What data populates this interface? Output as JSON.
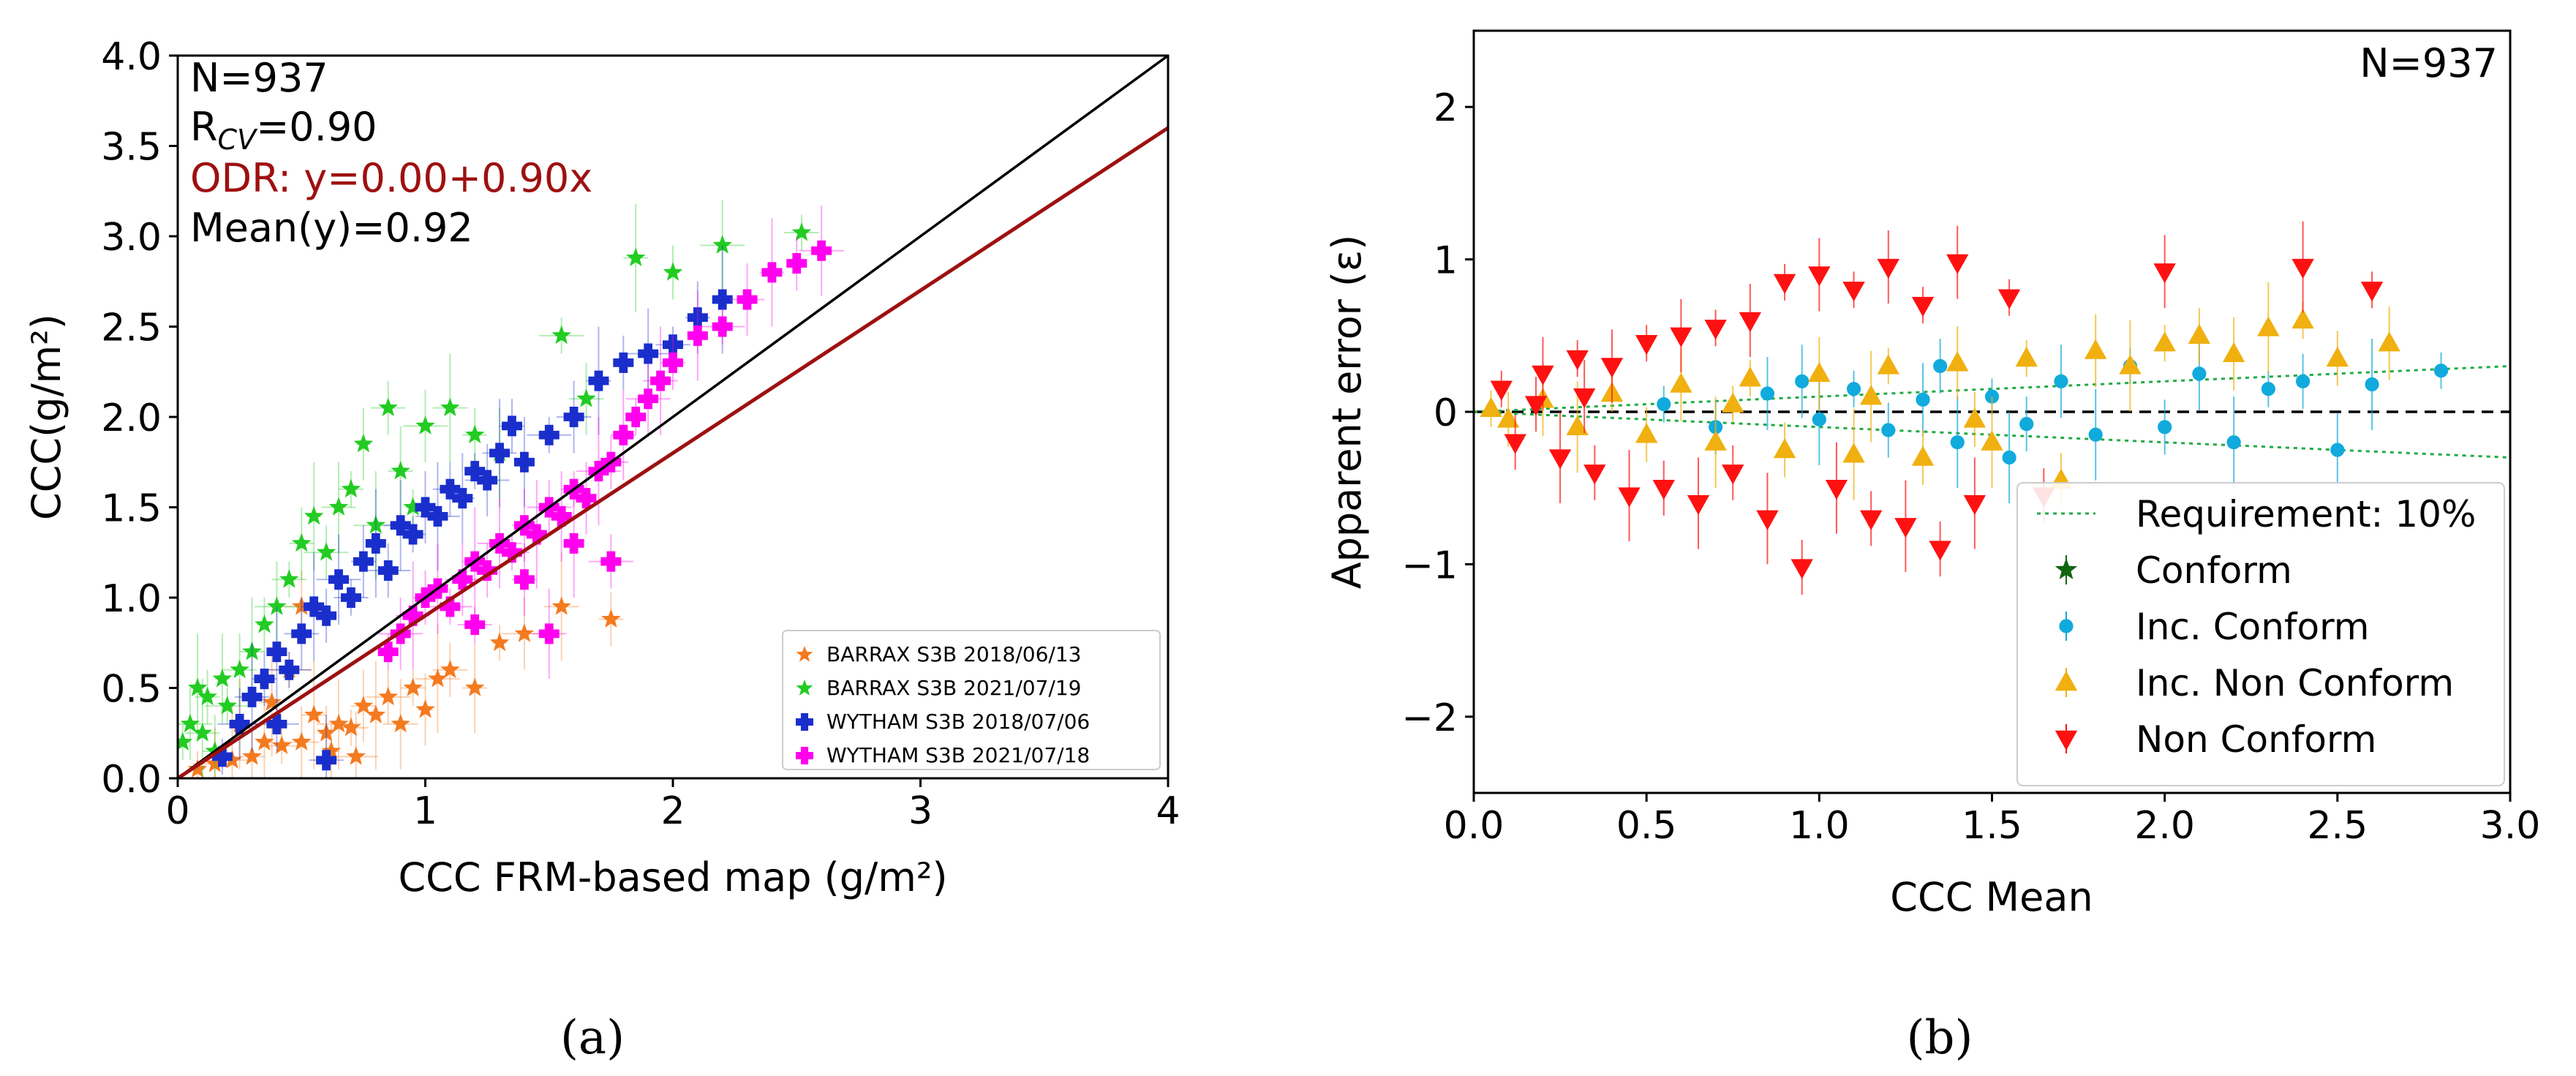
{
  "chart_data": [
    {
      "type": "scatter",
      "panel_label": "(a)",
      "xlabel": "CCC FRM-based map (g/m²)",
      "ylabel": "CCC(g/m²)",
      "xlim": [
        0,
        4
      ],
      "ylim": [
        0,
        4
      ],
      "x_ticks": [
        0,
        1,
        2,
        3,
        4
      ],
      "y_ticks": [
        0.0,
        0.5,
        1.0,
        1.5,
        2.0,
        2.5,
        3.0,
        3.5,
        4.0
      ],
      "x_tick_labels": [
        "0",
        "1",
        "2",
        "3",
        "4"
      ],
      "y_tick_labels": [
        "0.0",
        "0.5",
        "1.0",
        "1.5",
        "2.0",
        "2.5",
        "3.0",
        "3.5",
        "4.0"
      ],
      "grid": false,
      "legend_position": "bottom-right",
      "annotations": [
        {
          "text": "N=937",
          "color": "#000000"
        },
        {
          "text": "R_CV=0.90",
          "main": "R",
          "sub": "CV",
          "rest": "=0.90",
          "color": "#000000"
        },
        {
          "text": "ODR: y=0.00+0.90x",
          "color": "#9e1010"
        },
        {
          "text": "Mean(y)=0.92",
          "color": "#000000"
        }
      ],
      "lines": [
        {
          "kind": "1:1",
          "intercept": 0.0,
          "slope": 1.0,
          "color": "#000000"
        },
        {
          "kind": "ODR fit",
          "intercept": 0.0,
          "slope": 0.9,
          "color": "#9e1010"
        }
      ],
      "series": [
        {
          "name": "BARRAX S3B 2018/06/13",
          "marker": "star",
          "color": "#f47a20",
          "x_range": [
            0.05,
            1.85
          ],
          "relation": "y ≈ 0.35x, spread 0.15",
          "points": [
            [
              0.08,
              0.05
            ],
            [
              0.15,
              0.08
            ],
            [
              0.22,
              0.1
            ],
            [
              0.3,
              0.12
            ],
            [
              0.35,
              0.2
            ],
            [
              0.42,
              0.18
            ],
            [
              0.5,
              0.2
            ],
            [
              0.55,
              0.35
            ],
            [
              0.6,
              0.25
            ],
            [
              0.65,
              0.3
            ],
            [
              0.7,
              0.28
            ],
            [
              0.75,
              0.4
            ],
            [
              0.8,
              0.35
            ],
            [
              0.85,
              0.45
            ],
            [
              0.9,
              0.3
            ],
            [
              0.95,
              0.5
            ],
            [
              1.0,
              0.38
            ],
            [
              1.05,
              0.55
            ],
            [
              1.1,
              0.6
            ],
            [
              1.2,
              0.5
            ],
            [
              1.3,
              0.75
            ],
            [
              1.4,
              0.8
            ],
            [
              1.55,
              0.95
            ],
            [
              1.75,
              0.88
            ],
            [
              0.25,
              0.3
            ],
            [
              0.45,
              0.6
            ],
            [
              0.5,
              0.95
            ],
            [
              0.38,
              0.42
            ],
            [
              0.62,
              0.15
            ],
            [
              0.72,
              0.12
            ]
          ]
        },
        {
          "name": "BARRAX S3B 2021/07/19",
          "marker": "star",
          "color": "#22cc22",
          "x_range": [
            0.0,
            2.5
          ],
          "relation": "y ≈ 0.2 + 1.2x, spread 0.3",
          "points": [
            [
              0.02,
              0.2
            ],
            [
              0.05,
              0.3
            ],
            [
              0.1,
              0.25
            ],
            [
              0.12,
              0.45
            ],
            [
              0.18,
              0.55
            ],
            [
              0.2,
              0.4
            ],
            [
              0.25,
              0.6
            ],
            [
              0.3,
              0.7
            ],
            [
              0.35,
              0.85
            ],
            [
              0.4,
              0.95
            ],
            [
              0.45,
              1.1
            ],
            [
              0.5,
              1.3
            ],
            [
              0.55,
              1.45
            ],
            [
              0.6,
              1.25
            ],
            [
              0.65,
              1.5
            ],
            [
              0.7,
              1.6
            ],
            [
              0.75,
              1.85
            ],
            [
              0.8,
              1.4
            ],
            [
              0.85,
              2.05
            ],
            [
              0.9,
              1.7
            ],
            [
              0.95,
              1.5
            ],
            [
              1.0,
              1.95
            ],
            [
              1.1,
              2.05
            ],
            [
              1.2,
              1.9
            ],
            [
              1.3,
              1.8
            ],
            [
              1.55,
              2.45
            ],
            [
              1.65,
              2.1
            ],
            [
              1.85,
              2.88
            ],
            [
              2.0,
              2.8
            ],
            [
              2.2,
              2.95
            ],
            [
              2.52,
              3.02
            ],
            [
              0.15,
              0.15
            ],
            [
              0.08,
              0.5
            ]
          ]
        },
        {
          "name": "WYTHAM S3B 2018/07/06",
          "marker": "plus",
          "color": "#1a2ecc",
          "x_range": [
            0.15,
            2.2
          ],
          "relation": "y ≈ 0.15 + 1.1x, spread 0.25",
          "points": [
            [
              0.18,
              0.12
            ],
            [
              0.25,
              0.3
            ],
            [
              0.3,
              0.45
            ],
            [
              0.35,
              0.55
            ],
            [
              0.4,
              0.7
            ],
            [
              0.45,
              0.6
            ],
            [
              0.5,
              0.8
            ],
            [
              0.55,
              0.95
            ],
            [
              0.6,
              0.9
            ],
            [
              0.65,
              1.1
            ],
            [
              0.7,
              1.0
            ],
            [
              0.75,
              1.2
            ],
            [
              0.8,
              1.3
            ],
            [
              0.85,
              1.15
            ],
            [
              0.9,
              1.4
            ],
            [
              0.95,
              1.35
            ],
            [
              1.0,
              1.5
            ],
            [
              1.05,
              1.45
            ],
            [
              1.1,
              1.6
            ],
            [
              1.15,
              1.55
            ],
            [
              1.2,
              1.7
            ],
            [
              1.25,
              1.65
            ],
            [
              1.3,
              1.8
            ],
            [
              1.35,
              1.95
            ],
            [
              1.4,
              1.75
            ],
            [
              1.5,
              1.9
            ],
            [
              1.6,
              2.0
            ],
            [
              1.7,
              2.2
            ],
            [
              1.8,
              2.3
            ],
            [
              1.9,
              2.35
            ],
            [
              2.0,
              2.4
            ],
            [
              2.1,
              2.55
            ],
            [
              2.2,
              2.65
            ],
            [
              0.4,
              0.3
            ],
            [
              0.6,
              0.1
            ]
          ]
        },
        {
          "name": "WYTHAM S3B 2021/07/18",
          "marker": "plus",
          "color": "#ff00ee",
          "x_range": [
            0.8,
            2.65
          ],
          "relation": "y ≈ 0.1 + 0.95x, spread 0.3",
          "points": [
            [
              0.85,
              0.7
            ],
            [
              0.9,
              0.8
            ],
            [
              0.95,
              0.9
            ],
            [
              1.0,
              1.0
            ],
            [
              1.05,
              1.05
            ],
            [
              1.1,
              0.95
            ],
            [
              1.15,
              1.1
            ],
            [
              1.2,
              1.2
            ],
            [
              1.25,
              1.15
            ],
            [
              1.3,
              1.3
            ],
            [
              1.35,
              1.25
            ],
            [
              1.4,
              1.4
            ],
            [
              1.45,
              1.35
            ],
            [
              1.5,
              1.5
            ],
            [
              1.55,
              1.45
            ],
            [
              1.6,
              1.6
            ],
            [
              1.65,
              1.55
            ],
            [
              1.7,
              1.7
            ],
            [
              1.75,
              1.75
            ],
            [
              1.8,
              1.9
            ],
            [
              1.85,
              2.0
            ],
            [
              1.9,
              2.1
            ],
            [
              1.95,
              2.2
            ],
            [
              2.0,
              2.3
            ],
            [
              2.1,
              2.45
            ],
            [
              2.2,
              2.5
            ],
            [
              2.3,
              2.65
            ],
            [
              2.4,
              2.8
            ],
            [
              2.5,
              2.85
            ],
            [
              2.6,
              2.92
            ],
            [
              1.2,
              0.85
            ],
            [
              1.4,
              1.1
            ],
            [
              1.6,
              1.3
            ],
            [
              1.75,
              1.2
            ],
            [
              1.5,
              0.8
            ]
          ]
        }
      ]
    },
    {
      "type": "scatter",
      "panel_label": "(b)",
      "xlabel": "CCC Mean",
      "ylabel": "Apparent error (ε)",
      "xlim": [
        0,
        3
      ],
      "ylim": [
        -2.5,
        2.5
      ],
      "x_ticks": [
        0.0,
        0.5,
        1.0,
        1.5,
        2.0,
        2.5,
        3.0
      ],
      "y_ticks": [
        -2,
        -1,
        0,
        1,
        2
      ],
      "x_tick_labels": [
        "0.0",
        "0.5",
        "1.0",
        "1.5",
        "2.0",
        "2.5",
        "3.0"
      ],
      "y_tick_labels": [
        "−2",
        "−1",
        "0",
        "1",
        "2"
      ],
      "grid": false,
      "legend_position": "bottom-right",
      "annotations": [
        {
          "text": "N=937",
          "color": "#000000"
        }
      ],
      "lines": [
        {
          "kind": "zero",
          "y": 0,
          "style": "dashed",
          "color": "#000000"
        },
        {
          "kind": "requirement",
          "name": "Requirement: 10%",
          "relation": "±0.1·x",
          "style": "dotted",
          "color": "#22aa44"
        }
      ],
      "series": [
        {
          "name": "Conform",
          "marker": "star",
          "color": "#116611",
          "points": []
        },
        {
          "name": "Inc. Conform",
          "marker": "circle",
          "color": "#11aadd",
          "x_range": [
            0.5,
            2.8
          ],
          "relation": "|ε| < 0.35",
          "points": [
            [
              0.55,
              0.05
            ],
            [
              0.7,
              -0.1
            ],
            [
              0.85,
              0.12
            ],
            [
              1.0,
              -0.05
            ],
            [
              1.1,
              0.15
            ],
            [
              1.2,
              -0.12
            ],
            [
              1.3,
              0.08
            ],
            [
              1.4,
              -0.2
            ],
            [
              1.5,
              0.1
            ],
            [
              1.6,
              -0.08
            ],
            [
              1.7,
              0.2
            ],
            [
              1.8,
              -0.15
            ],
            [
              1.9,
              0.3
            ],
            [
              2.0,
              -0.1
            ],
            [
              2.1,
              0.25
            ],
            [
              2.2,
              -0.2
            ],
            [
              2.3,
              0.15
            ],
            [
              2.4,
              0.2
            ],
            [
              2.5,
              -0.25
            ],
            [
              2.6,
              0.18
            ],
            [
              2.8,
              0.27
            ],
            [
              1.35,
              0.3
            ],
            [
              0.95,
              0.2
            ],
            [
              1.55,
              -0.3
            ]
          ]
        },
        {
          "name": "Inc. Non Conform",
          "marker": "triangle-up",
          "color": "#f0b010",
          "x_range": [
            0.0,
            2.7
          ],
          "relation": "ε ≈ ±(0.05 + 0.15x)",
          "points": [
            [
              0.05,
              0.02
            ],
            [
              0.1,
              -0.05
            ],
            [
              0.2,
              0.08
            ],
            [
              0.3,
              -0.1
            ],
            [
              0.4,
              0.12
            ],
            [
              0.5,
              -0.15
            ],
            [
              0.6,
              0.18
            ],
            [
              0.7,
              -0.2
            ],
            [
              0.8,
              0.22
            ],
            [
              0.9,
              -0.25
            ],
            [
              1.0,
              0.25
            ],
            [
              1.1,
              -0.28
            ],
            [
              1.2,
              0.3
            ],
            [
              1.3,
              -0.3
            ],
            [
              1.4,
              0.32
            ],
            [
              1.5,
              -0.2
            ],
            [
              1.6,
              0.35
            ],
            [
              1.7,
              -0.45
            ],
            [
              1.8,
              0.4
            ],
            [
              1.9,
              0.3
            ],
            [
              2.0,
              0.45
            ],
            [
              2.1,
              0.5
            ],
            [
              2.2,
              0.38
            ],
            [
              2.3,
              0.55
            ],
            [
              2.4,
              0.6
            ],
            [
              2.5,
              0.35
            ],
            [
              2.65,
              0.45
            ],
            [
              1.15,
              0.1
            ],
            [
              0.75,
              0.05
            ],
            [
              1.45,
              -0.05
            ]
          ]
        },
        {
          "name": "Non Conform",
          "marker": "triangle-down",
          "color": "#ff1111",
          "x_range": [
            0.05,
            2.6
          ],
          "relation": "|ε| ≈ 0.2 – 1.05",
          "points": [
            [
              0.08,
              0.15
            ],
            [
              0.12,
              -0.2
            ],
            [
              0.2,
              0.25
            ],
            [
              0.25,
              -0.3
            ],
            [
              0.3,
              0.35
            ],
            [
              0.35,
              -0.4
            ],
            [
              0.4,
              0.3
            ],
            [
              0.45,
              -0.55
            ],
            [
              0.5,
              0.45
            ],
            [
              0.55,
              -0.5
            ],
            [
              0.6,
              0.5
            ],
            [
              0.65,
              -0.6
            ],
            [
              0.7,
              0.55
            ],
            [
              0.75,
              -0.4
            ],
            [
              0.8,
              0.6
            ],
            [
              0.85,
              -0.7
            ],
            [
              0.9,
              0.85
            ],
            [
              0.95,
              -1.02
            ],
            [
              1.0,
              0.9
            ],
            [
              1.05,
              -0.5
            ],
            [
              1.1,
              0.8
            ],
            [
              1.15,
              -0.7
            ],
            [
              1.2,
              0.95
            ],
            [
              1.25,
              -0.75
            ],
            [
              1.3,
              0.7
            ],
            [
              1.35,
              -0.9
            ],
            [
              1.4,
              0.98
            ],
            [
              1.45,
              -0.6
            ],
            [
              1.55,
              0.75
            ],
            [
              1.65,
              -0.55
            ],
            [
              2.0,
              0.92
            ],
            [
              2.4,
              0.95
            ],
            [
              2.6,
              0.8
            ],
            [
              0.18,
              0.05
            ],
            [
              0.32,
              0.1
            ]
          ]
        }
      ]
    }
  ]
}
